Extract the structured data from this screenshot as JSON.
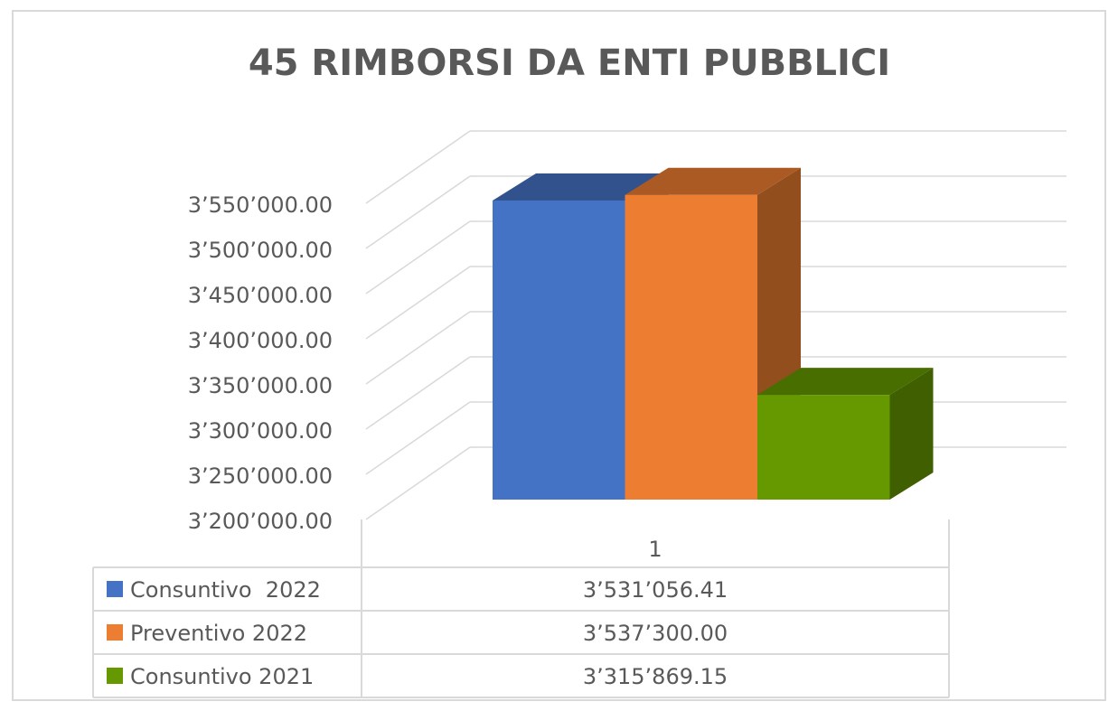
{
  "chart_data": {
    "type": "bar3d",
    "title": "45 RIMBORSI DA ENTI PUBBLICI",
    "categories": [
      "1"
    ],
    "series": [
      {
        "name": "Consuntivo  2022",
        "color": "#4472c4",
        "values": [
          3531056.41
        ],
        "value_labels": [
          "3’531’056.41"
        ]
      },
      {
        "name": "Preventivo 2022",
        "color": "#ed7d31",
        "values": [
          3537300.0
        ],
        "value_labels": [
          "3’537’300.00"
        ]
      },
      {
        "name": "Consuntivo 2021",
        "color": "#669900",
        "values": [
          3315869.15
        ],
        "value_labels": [
          "3’315’869.15"
        ]
      }
    ],
    "ylim": [
      3200000,
      3550000
    ],
    "yticks": [
      {
        "value": 3200000,
        "label": "3’200’000.00"
      },
      {
        "value": 3250000,
        "label": "3’250’000.00"
      },
      {
        "value": 3300000,
        "label": "3’300’000.00"
      },
      {
        "value": 3350000,
        "label": "3’350’000.00"
      },
      {
        "value": 3400000,
        "label": "3’400’000.00"
      },
      {
        "value": 3450000,
        "label": "3’450’000.00"
      },
      {
        "value": 3500000,
        "label": "3’500’000.00"
      },
      {
        "value": 3550000,
        "label": "3’550’000.00"
      }
    ],
    "grid": true,
    "data_table": true
  }
}
